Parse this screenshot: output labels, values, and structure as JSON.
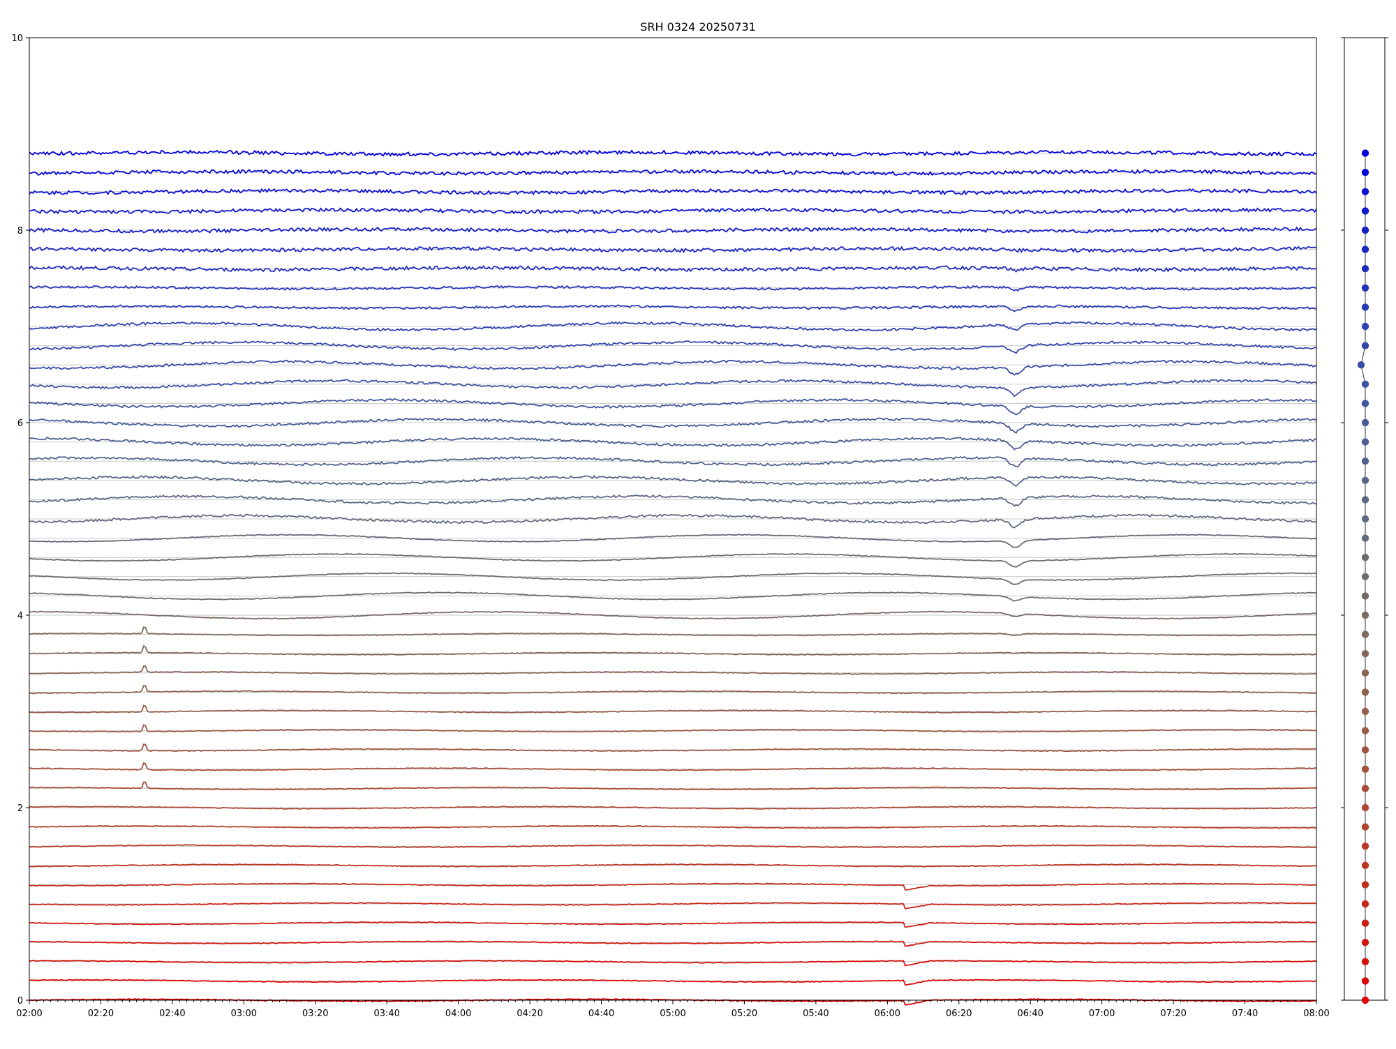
{
  "chart_data": {
    "type": "line",
    "title": "SRH 0324 20250731",
    "xlabel": "",
    "ylabel": "",
    "x_range": [
      "02:00",
      "08:00"
    ],
    "ylim": [
      0,
      10
    ],
    "y_ticks": [
      "0",
      "2",
      "4",
      "6",
      "8",
      "10"
    ],
    "x_ticks": [
      "02:00",
      "02:20",
      "02:40",
      "03:00",
      "03:20",
      "03:40",
      "04:00",
      "04:20",
      "04:40",
      "05:00",
      "05:20",
      "05:40",
      "06:00",
      "06:20",
      "06:40",
      "07:00",
      "07:20",
      "07:40",
      "08:00"
    ],
    "grid": "horizontal lines at every 0.2",
    "series_count": 45,
    "series_step": 0.2,
    "color_from": "#e00000",
    "color_to": "#0000dd",
    "series_offsets": [
      0.0,
      0.2,
      0.4,
      0.6,
      0.8,
      1.0,
      1.2,
      1.4,
      1.6,
      1.8,
      2.0,
      2.2,
      2.4,
      2.6,
      2.8,
      3.0,
      3.2,
      3.4,
      3.6,
      3.8,
      4.0,
      4.2,
      4.4,
      4.6,
      4.8,
      5.0,
      5.2,
      5.4,
      5.6,
      5.8,
      6.0,
      6.2,
      6.4,
      6.6,
      6.8,
      7.0,
      7.2,
      7.4,
      7.6,
      7.8,
      8.0,
      8.2,
      8.4,
      8.6,
      8.8
    ],
    "side_panel_points": [
      0.0,
      0.2,
      0.4,
      0.6,
      0.8,
      1.0,
      1.2,
      1.4,
      1.6,
      1.8,
      2.0,
      2.2,
      2.4,
      2.6,
      2.8,
      3.0,
      3.2,
      3.4,
      3.6,
      3.8,
      4.0,
      4.2,
      4.4,
      4.6,
      4.8,
      5.0,
      5.2,
      5.4,
      5.6,
      5.8,
      6.0,
      6.2,
      6.4,
      6.6,
      6.8,
      7.0,
      7.2,
      7.4,
      7.6,
      7.8,
      8.0,
      8.2,
      8.4,
      8.6,
      8.8
    ]
  }
}
